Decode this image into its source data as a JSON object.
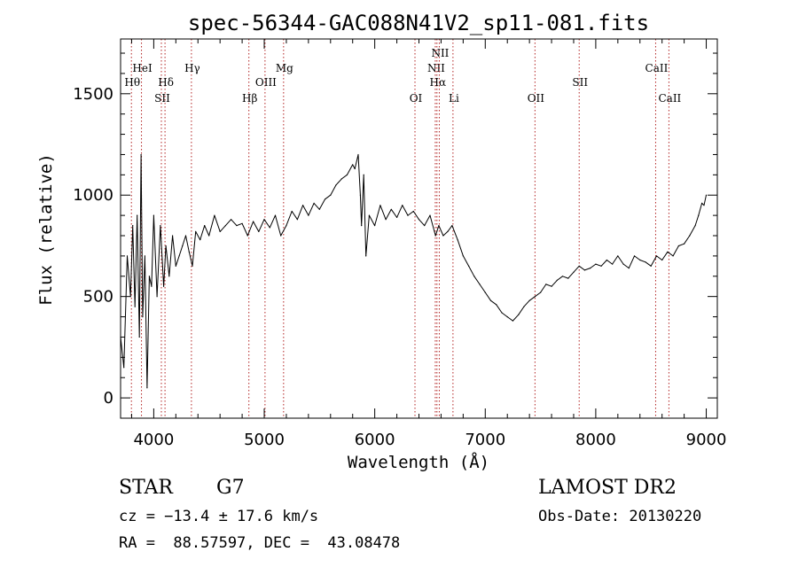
{
  "chart_data": {
    "type": "line",
    "title": "spec-56344-GAC088N41V2_sp11-081.fits",
    "xlabel": "Wavelength (Å)",
    "ylabel": "Flux (relative)",
    "xlim": [
      3700,
      9100
    ],
    "ylim": [
      -100,
      1770
    ],
    "xticks": [
      4000,
      5000,
      6000,
      7000,
      8000,
      9000
    ],
    "yticks": [
      0,
      500,
      1000,
      1500
    ],
    "grid": false,
    "line_color": "#000000",
    "marker_color": "#b22222",
    "series": [
      {
        "x": [
          3700,
          3730,
          3760,
          3790,
          3810,
          3830,
          3850,
          3870,
          3885,
          3900,
          3920,
          3940,
          3960,
          3980,
          4000,
          4030,
          4060,
          4090,
          4110,
          4140,
          4170,
          4200,
          4230,
          4260,
          4290,
          4320,
          4350,
          4380,
          4420,
          4460,
          4500,
          4550,
          4600,
          4650,
          4700,
          4750,
          4800,
          4850,
          4900,
          4950,
          5000,
          5050,
          5100,
          5150,
          5200,
          5250,
          5300,
          5350,
          5400,
          5450,
          5500,
          5550,
          5600,
          5650,
          5700,
          5750,
          5800,
          5820,
          5850,
          5870,
          5880,
          5900,
          5920,
          5950,
          6000,
          6050,
          6100,
          6150,
          6200,
          6250,
          6300,
          6350,
          6400,
          6450,
          6500,
          6550,
          6580,
          6620,
          6660,
          6700,
          6750,
          6800,
          6850,
          6900,
          6950,
          7000,
          7050,
          7100,
          7150,
          7200,
          7250,
          7300,
          7350,
          7400,
          7450,
          7500,
          7550,
          7600,
          7650,
          7700,
          7750,
          7800,
          7850,
          7900,
          7950,
          8000,
          8050,
          8100,
          8150,
          8200,
          8250,
          8300,
          8350,
          8400,
          8450,
          8500,
          8550,
          8600,
          8650,
          8700,
          8750,
          8800,
          8850,
          8900,
          8930,
          8960,
          8980,
          9000
        ],
        "y": [
          300,
          150,
          700,
          500,
          850,
          450,
          900,
          300,
          1200,
          400,
          700,
          50,
          600,
          550,
          900,
          500,
          850,
          550,
          750,
          600,
          800,
          650,
          700,
          750,
          800,
          720,
          650,
          820,
          780,
          850,
          800,
          900,
          820,
          850,
          880,
          850,
          860,
          800,
          870,
          820,
          880,
          840,
          900,
          800,
          850,
          920,
          880,
          950,
          900,
          960,
          930,
          980,
          1000,
          1050,
          1080,
          1100,
          1150,
          1130,
          1200,
          1000,
          850,
          1100,
          700,
          900,
          850,
          950,
          880,
          930,
          890,
          950,
          900,
          920,
          880,
          850,
          900,
          800,
          850,
          800,
          820,
          850,
          780,
          700,
          650,
          600,
          560,
          520,
          480,
          460,
          420,
          400,
          380,
          410,
          450,
          480,
          500,
          520,
          560,
          550,
          580,
          600,
          590,
          620,
          650,
          630,
          640,
          660,
          650,
          680,
          660,
          700,
          660,
          640,
          700,
          680,
          670,
          650,
          700,
          680,
          720,
          700,
          750,
          760,
          800,
          850,
          900,
          960,
          950,
          1000
        ]
      }
    ],
    "line_markers": [
      {
        "label": "Hθ",
        "x": 3798,
        "row": 2
      },
      {
        "label": "HeI",
        "x": 3889,
        "row": 1
      },
      {
        "label": "SII",
        "x": 4069,
        "row": 3
      },
      {
        "label": "Hδ",
        "x": 4102,
        "row": 2
      },
      {
        "label": "Hγ",
        "x": 4341,
        "row": 1
      },
      {
        "label": "Hβ",
        "x": 4861,
        "row": 3
      },
      {
        "label": "OIII",
        "x": 5007,
        "row": 2
      },
      {
        "label": "Mg",
        "x": 5175,
        "row": 1
      },
      {
        "label": "OI",
        "x": 6364,
        "row": 3
      },
      {
        "label": "NII",
        "x": 6548,
        "row": 1
      },
      {
        "label": "Hα",
        "x": 6563,
        "row": 2
      },
      {
        "label": "NII",
        "x": 6584,
        "row": 0
      },
      {
        "label": "Li",
        "x": 6708,
        "row": 3
      },
      {
        "label": "OII",
        "x": 7450,
        "row": 3
      },
      {
        "label": "SII",
        "x": 7850,
        "row": 2
      },
      {
        "label": "CaII",
        "x": 8542,
        "row": 1
      },
      {
        "label": "CaII",
        "x": 8662,
        "row": 3
      }
    ]
  },
  "info": {
    "object_class": "STAR",
    "subclass": "G7",
    "velocity": "cz = −13.4 ± 17.6 km/s",
    "coords": "RA =  88.57597, DEC =  43.08478",
    "survey": "LAMOST DR2",
    "obs_date": "Obs-Date: 20130220"
  }
}
